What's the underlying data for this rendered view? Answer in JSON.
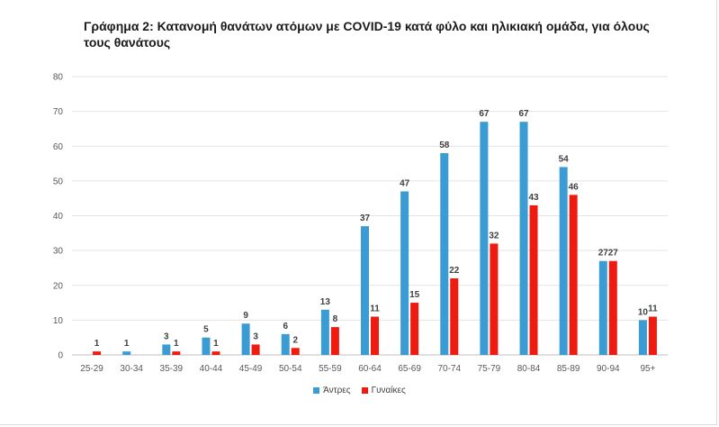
{
  "chart_data": {
    "type": "bar",
    "title": "Γράφημα 2: Κατανομή θανάτων ατόμων με COVID-19 κατά φύλο και ηλικιακή ομάδα, για όλους τους θανάτους",
    "xlabel": "",
    "ylabel": "",
    "ylim": [
      0,
      80
    ],
    "yticks": [
      0,
      10,
      20,
      30,
      40,
      50,
      60,
      70,
      80
    ],
    "grid": true,
    "legend_position": "bottom",
    "categories": [
      "25-29",
      "30-34",
      "35-39",
      "40-44",
      "45-49",
      "50-54",
      "55-59",
      "60-64",
      "65-69",
      "70-74",
      "75-79",
      "80-84",
      "85-89",
      "90-94",
      "95+"
    ],
    "series": [
      {
        "name": "Άντρες",
        "color": "#3b9bd3",
        "values": [
          null,
          1,
          3,
          5,
          9,
          6,
          13,
          37,
          47,
          58,
          67,
          67,
          54,
          27,
          10
        ]
      },
      {
        "name": "Γυναίκες",
        "color": "#ef1a10",
        "values": [
          1,
          null,
          1,
          1,
          3,
          2,
          8,
          11,
          15,
          22,
          32,
          43,
          46,
          27,
          11
        ]
      }
    ]
  }
}
